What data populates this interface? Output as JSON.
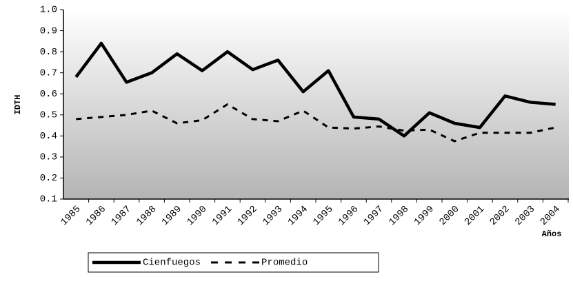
{
  "chart_data": {
    "type": "line",
    "y_label": "IDTH",
    "x_label": "Años",
    "categories": [
      "1985",
      "1986",
      "1987",
      "1988",
      "1989",
      "1990",
      "1991",
      "1992",
      "1993",
      "1994",
      "1995",
      "1996",
      "1997",
      "1998",
      "1999",
      "2000",
      "2001",
      "2002",
      "2003",
      "2004"
    ],
    "series": [
      {
        "name": "Cienfuegos",
        "color": "#000000",
        "dash": "solid",
        "values": [
          0.68,
          0.84,
          0.655,
          0.7,
          0.79,
          0.71,
          0.8,
          0.715,
          0.76,
          0.61,
          0.71,
          0.49,
          0.48,
          0.4,
          0.51,
          0.46,
          0.44,
          0.59,
          0.56,
          0.55
        ]
      },
      {
        "name": "Promedio",
        "color": "#000000",
        "dash": "dashed",
        "values": [
          0.48,
          0.49,
          0.5,
          0.52,
          0.46,
          0.475,
          0.55,
          0.48,
          0.47,
          0.52,
          0.44,
          0.435,
          0.445,
          0.425,
          0.43,
          0.375,
          0.415,
          0.415,
          0.415,
          0.44
        ]
      }
    ],
    "ylim": [
      0.1,
      1.0
    ],
    "yticks": [
      0.1,
      0.2,
      0.3,
      0.4,
      0.5,
      0.6,
      0.7,
      0.8,
      0.9,
      {
        "value": 1.0,
        "label": "1.0"
      }
    ]
  }
}
